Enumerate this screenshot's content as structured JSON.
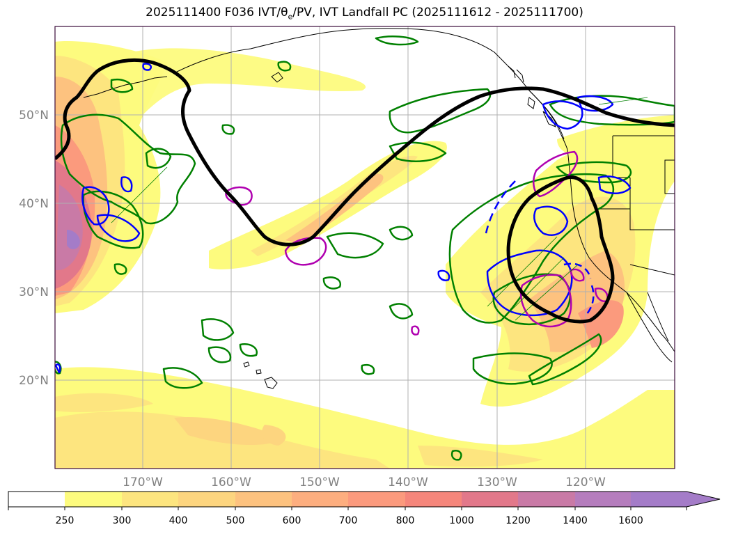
{
  "title": {
    "prefix": "2025111400 F036 IVT/",
    "theta": "θ",
    "theta_sub": "e",
    "suffix": "/PV, IVT Landfall PC (2025111612 - 2025111700)"
  },
  "map": {
    "lat_labels": [
      "50°N",
      "40°N",
      "30°N",
      "20°N"
    ],
    "lon_labels": [
      "170°W",
      "160°W",
      "150°W",
      "140°W",
      "130°W",
      "120°W"
    ]
  },
  "colorbar": {
    "ticks": [
      "250",
      "300",
      "400",
      "500",
      "600",
      "700",
      "800",
      "1000",
      "1200",
      "1400",
      "1600"
    ],
    "colors": [
      "#ffffff",
      "#fdfb7e",
      "#fde57f",
      "#fdd57f",
      "#fdc27f",
      "#fdae7f",
      "#fb9a7d",
      "#f5867b",
      "#e2788a",
      "#c97aa6",
      "#b57dbd",
      "#a47cc8"
    ]
  },
  "colors": {
    "trough": "#000000",
    "pv_contour": "#0000ff",
    "theta_contour": "#008000",
    "landfall": "#b000b0",
    "grid": "#b0b0b0",
    "coast": "#000000"
  }
}
